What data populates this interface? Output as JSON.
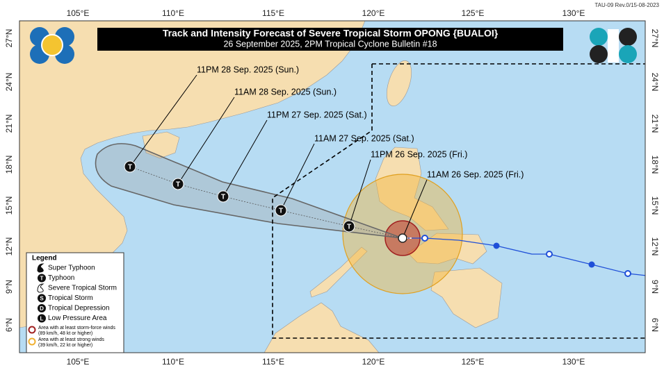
{
  "header": {
    "title": "Track and Intensity Forecast of Severe Tropical Storm OPONG {BUALOI}",
    "subtitle": "26 September 2025, 2PM Tropical Cyclone Bulletin #18",
    "revision": "TAU-09 Rev.0/15-08-2023"
  },
  "longitude_labels": [
    "105°E",
    "110°E",
    "115°E",
    "120°E",
    "125°E",
    "130°E"
  ],
  "latitude_labels": [
    "27°N",
    "24°N",
    "21°N",
    "18°N",
    "15°N",
    "12°N",
    "9°N",
    "6°N"
  ],
  "forecast_points": [
    {
      "label": "11AM 26 Sep. 2025 (Fri.)"
    },
    {
      "label": "11PM 26 Sep. 2025 (Fri.)",
      "symbol": "T"
    },
    {
      "label": "11AM 27 Sep. 2025 (Sat.)",
      "symbol": "T"
    },
    {
      "label": "11PM 27 Sep. 2025 (Sat.)",
      "symbol": "T"
    },
    {
      "label": "11AM 28 Sep. 2025 (Sun.)",
      "symbol": "T"
    },
    {
      "label": "11PM 28 Sep. 2025 (Sun.)",
      "symbol": "T"
    }
  ],
  "legend": {
    "title": "Legend",
    "items": [
      {
        "label": "Super Typhoon"
      },
      {
        "label": "Typhoon",
        "symbol": "T"
      },
      {
        "label": "Severe Tropical Storm"
      },
      {
        "label": "Tropical Storm",
        "symbol": "S"
      },
      {
        "label": "Tropical Depression",
        "symbol": "D"
      },
      {
        "label": "Low Pressure Area",
        "symbol": "L"
      }
    ],
    "notes": [
      {
        "text": "Area with at least storm-force winds",
        "detail": "(89 km/h, 48 kt or higher)"
      },
      {
        "text": "Area with at least strong winds",
        "detail": "(39 km/h, 22 kt or higher)"
      }
    ]
  }
}
